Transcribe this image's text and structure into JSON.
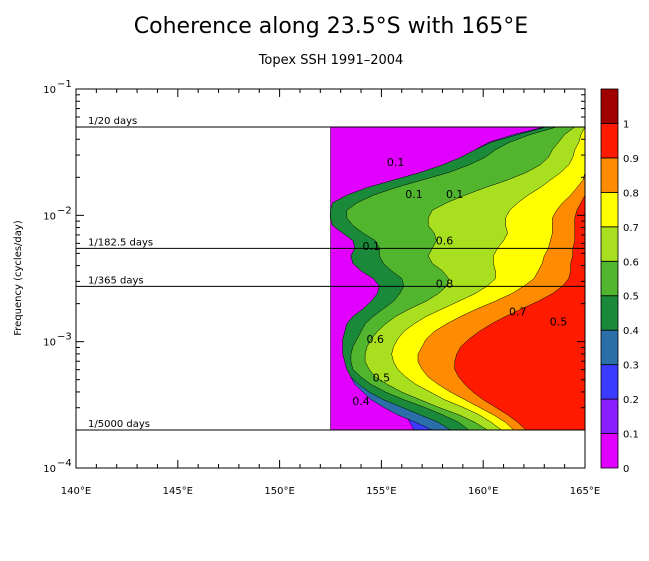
{
  "chart_data": {
    "type": "heatmap",
    "title": "Coherence along 23.5°S with 165°E",
    "subtitle": "Topex SSH 1991–2004",
    "xlabel": "",
    "ylabel": "Frequency (cycles/day)",
    "x_ticks": [
      "140°E",
      "145°E",
      "150°E",
      "155°E",
      "160°E",
      "165°E"
    ],
    "x_tick_values": [
      140,
      145,
      150,
      155,
      160,
      165
    ],
    "xlim": [
      140,
      165
    ],
    "y_scale": "log",
    "ylim": [
      0.0001,
      0.1
    ],
    "y_tick_labels": [
      {
        "value": 0.1,
        "mantissa": "10",
        "exp": "−1"
      },
      {
        "value": 0.01,
        "mantissa": "10",
        "exp": "−2"
      },
      {
        "value": 0.001,
        "mantissa": "10",
        "exp": "−3"
      },
      {
        "value": 0.0001,
        "mantissa": "10",
        "exp": "−4"
      }
    ],
    "period_lines": [
      {
        "label": "1/20 days",
        "frequency": 0.05
      },
      {
        "label": "1/182.5 days",
        "frequency": 0.005479
      },
      {
        "label": "1/365 days",
        "frequency": 0.00274
      },
      {
        "label": "1/5000 days",
        "frequency": 0.0002
      }
    ],
    "data_region": {
      "x_min": 152.5,
      "x_max": 165,
      "f_min": 0.0002,
      "f_max": 0.05
    },
    "colorbar": {
      "levels": [
        0,
        0.1,
        0.2,
        0.3,
        0.4,
        0.5,
        0.6,
        0.7,
        0.8,
        0.9,
        1
      ],
      "labels": [
        "0",
        "0.1",
        "0.2",
        "0.3",
        "0.4",
        "0.5",
        "0.6",
        "0.7",
        "0.8",
        "0.9",
        "1"
      ],
      "colors": [
        "#e100ff",
        "#8a1eff",
        "#3b3bff",
        "#2a6fa8",
        "#1a8a3a",
        "#52b52e",
        "#a8e020",
        "#ffff00",
        "#ff8c00",
        "#ff1a00",
        "#a00000"
      ]
    },
    "coherence_bands": [
      {
        "level": 0.0,
        "fmin": 0.0002,
        "fmax": 0.05,
        "x_start": [
          152.5,
          152.5,
          152.5,
          152.5,
          152.5,
          152.5,
          152.5,
          152.5,
          152.5,
          152.5,
          152.5,
          152.5,
          152.5,
          152.5,
          152.5,
          152.5,
          152.5,
          152.5,
          152.5,
          152.5,
          152.5,
          152.5,
          152.5,
          152.5,
          152.5,
          152.5,
          152.5,
          152.5,
          152.5,
          152.5,
          152.5,
          152.5,
          152.5,
          152.5,
          152.5,
          152.5,
          152.5,
          152.5,
          152.5,
          152.5,
          152.5
        ]
      },
      {
        "level": 0.1,
        "fmin": 0.0002,
        "fmax": 0.05,
        "x_start": [
          165,
          165,
          165,
          165,
          165,
          165,
          164.9,
          164.4,
          163.9,
          163.5,
          163.2,
          163,
          163,
          162.6,
          162.1,
          161.3,
          160.2,
          159.1,
          158.2,
          157.5,
          157,
          157,
          157.5,
          157.3,
          157.7,
          157.8,
          157.4,
          156.7,
          156.2,
          155.9,
          156.1,
          157.2,
          158.6,
          160.2,
          161.6,
          162.6,
          163.1,
          163.3,
          163.6,
          164.1,
          164.4
        ]
      },
      {
        "level": 0.2,
        "fmin": 0.0002,
        "fmax": 0.05,
        "x_start": [
          156.6,
          156.4,
          156.2,
          155.8,
          155.2,
          154.7,
          154.4,
          154.1,
          154,
          153.8,
          153.8,
          153.8,
          153.8,
          154,
          154,
          154.3,
          154.9,
          155.3,
          155.5,
          155.4,
          155.1,
          154.4,
          153.9,
          153.9,
          154.2,
          154.3,
          153.9,
          153.4,
          153.1,
          153.1,
          153.7,
          154.6,
          156,
          157.6,
          159.1,
          160.2,
          160.9,
          161.3,
          161.8,
          162.6,
          163.6
        ]
      },
      {
        "level": 0.3,
        "fmin": 0.0002,
        "fmax": 0.05,
        "x_start": [
          157.5,
          156.7,
          155.8,
          155.1,
          154.5,
          154.1,
          153.7,
          153.5,
          153.4,
          153.4,
          153.3,
          153.3,
          153.3,
          153.5,
          153.6,
          153.8,
          154.2,
          154.6,
          155,
          155.1,
          154.9,
          154.3,
          153.9,
          153.8,
          153.9,
          153.8,
          153.2,
          152.8,
          152.5,
          152.5,
          152.9,
          153.7,
          154.8,
          156.1,
          157.3,
          158.3,
          159.1,
          159.6,
          160.3,
          161.5,
          163
        ]
      },
      {
        "level": 0.4,
        "fmin": 0.0002,
        "fmax": 0.05,
        "x_start": [
          158.4,
          157.8,
          156.9,
          156,
          155.1,
          154.4,
          153.9,
          153.5,
          153.3,
          153.2,
          153.1,
          153.1,
          153.1,
          153.2,
          153.3,
          153.6,
          154.1,
          154.5,
          154.8,
          154.9,
          154.6,
          154,
          153.6,
          153.5,
          153.7,
          153.6,
          153.1,
          152.6,
          152.5,
          152.5,
          152.6,
          153.3,
          154.3,
          155.6,
          156.9,
          158,
          158.9,
          159.6,
          160.4,
          161.7,
          163.1
        ]
      },
      {
        "level": 0.5,
        "fmin": 0.0002,
        "fmax": 0.05,
        "x_start": [
          159.3,
          158.8,
          158,
          157.1,
          156.1,
          155.2,
          154.5,
          154,
          153.6,
          153.5,
          153.5,
          153.6,
          153.8,
          154,
          154.2,
          154.6,
          155.1,
          155.6,
          155.9,
          156.1,
          156,
          155.5,
          155.1,
          154.9,
          154.9,
          154.7,
          154.1,
          153.6,
          153.3,
          153.3,
          153.8,
          154.6,
          155.7,
          157,
          158.3,
          159.3,
          160.1,
          160.6,
          161.3,
          162.3,
          163.6
        ]
      },
      {
        "level": 0.6,
        "fmin": 0.0002,
        "fmax": 0.05,
        "x_start": [
          160.2,
          159.6,
          158.8,
          157.8,
          156.9,
          156,
          155.3,
          154.7,
          154.4,
          154.2,
          154.2,
          154.3,
          154.5,
          154.8,
          155.2,
          155.7,
          156.4,
          157.2,
          157.8,
          158.2,
          158.3,
          158,
          157.5,
          157.3,
          157.5,
          157.7,
          157.6,
          157.3,
          157.3,
          157.5,
          158.2,
          159.1,
          160.1,
          161.2,
          162.1,
          162.8,
          163.2,
          163.4,
          163.7,
          164,
          164.5
        ]
      },
      {
        "level": 0.7,
        "fmin": 0.0002,
        "fmax": 0.05,
        "x_start": [
          160.9,
          160.4,
          159.8,
          159,
          158.1,
          157.4,
          156.7,
          156.2,
          155.8,
          155.6,
          155.5,
          155.6,
          155.8,
          156.1,
          156.6,
          157.2,
          158,
          158.8,
          159.6,
          160.2,
          160.6,
          160.6,
          160.5,
          160.5,
          160.7,
          161,
          161.2,
          161.1,
          161.1,
          161.3,
          161.7,
          162.2,
          162.8,
          163.3,
          163.8,
          164.2,
          164.4,
          164.5,
          164.7,
          164.8,
          165
        ]
      },
      {
        "level": 0.8,
        "fmin": 0.0002,
        "fmax": 0.05,
        "x_start": [
          161.5,
          161.1,
          160.5,
          159.8,
          159.1,
          158.4,
          157.8,
          157.3,
          157,
          156.8,
          156.8,
          157,
          157.2,
          157.6,
          158.2,
          158.9,
          159.7,
          160.6,
          161.4,
          162,
          162.5,
          162.7,
          162.9,
          163,
          163.2,
          163.3,
          163.4,
          163.4,
          163.4,
          163.6,
          163.9,
          164.3,
          164.6,
          164.9,
          165,
          165,
          165,
          165,
          165,
          165,
          165
        ]
      },
      {
        "level": 0.9,
        "fmin": 0.0002,
        "fmax": 0.05,
        "x_start": [
          162.1,
          161.7,
          161.2,
          160.6,
          160,
          159.5,
          159.1,
          158.8,
          158.6,
          158.6,
          158.7,
          158.9,
          159.3,
          159.8,
          160.4,
          161.1,
          161.9,
          162.7,
          163.4,
          163.9,
          164.2,
          164.3,
          164.3,
          164.4,
          164.4,
          164.5,
          164.5,
          164.5,
          164.5,
          164.6,
          164.8,
          165,
          165,
          165,
          165,
          165,
          165,
          165,
          165,
          165,
          165
        ]
      },
      {
        "level": 1.0,
        "fmin": 0.0002,
        "fmax": 0.05,
        "x_start": [
          165,
          165,
          165,
          165,
          165,
          165,
          165,
          165,
          165,
          165,
          165,
          165,
          165,
          165,
          165,
          165,
          165,
          165,
          165,
          165,
          165,
          165,
          165,
          165,
          165,
          165,
          165,
          165,
          165,
          165,
          165,
          165,
          165,
          165,
          165,
          165,
          165,
          165,
          165,
          165,
          165
        ]
      }
    ],
    "contour_labels": [
      {
        "text": "0.1",
        "x": 155.7,
        "f": 0.0264
      },
      {
        "text": "0.1",
        "x": 156.6,
        "f": 0.0147
      },
      {
        "text": "0.1",
        "x": 158.6,
        "f": 0.0147
      },
      {
        "text": "0.6",
        "x": 158.1,
        "f": 0.0063
      },
      {
        "text": "0.1",
        "x": 154.5,
        "f": 0.0057
      },
      {
        "text": "0.8",
        "x": 158.1,
        "f": 0.0029
      },
      {
        "text": "0.7",
        "x": 161.7,
        "f": 0.00174
      },
      {
        "text": "0.5",
        "x": 163.7,
        "f": 0.00144
      },
      {
        "text": "0.6",
        "x": 154.7,
        "f": 0.00105
      },
      {
        "text": "0.5",
        "x": 155,
        "f": 0.00052
      },
      {
        "text": "0.4",
        "x": 154,
        "f": 0.00034
      }
    ]
  }
}
